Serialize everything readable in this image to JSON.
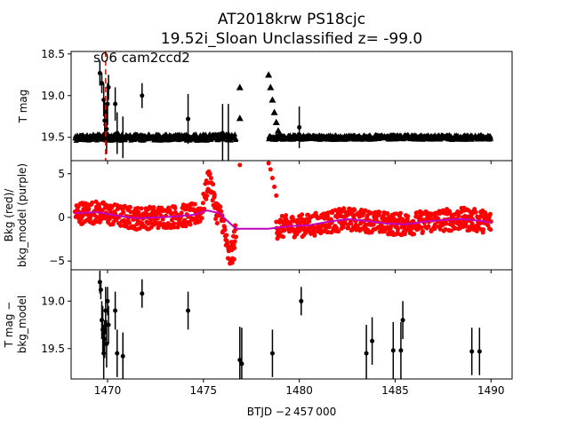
{
  "title_line1": "AT2018krw  PS18cjc",
  "title_line2": "19.52i_Sloan Unclassified z= -99.0",
  "xlabel": "BTJD −2 457 000",
  "chart_data": [
    {
      "type": "scatter",
      "panel": "top",
      "ylabel": "T mag",
      "annotation": "s06 cam2ccd2",
      "xlim": [
        1468.1,
        1491.1
      ],
      "ylim": [
        19.78,
        18.47
      ],
      "y_inverted": true,
      "xticks": [
        1470,
        1475,
        1480,
        1485,
        1490
      ],
      "yticks": [
        18.5,
        19.0,
        19.5
      ],
      "ytick_labels": [
        "18.5",
        "19.0",
        "19.5"
      ],
      "marker_line": {
        "x": 1469.9,
        "color": "#ff0000",
        "style": "dashed"
      },
      "triangle_series": {
        "name": "",
        "color": "#000000",
        "segments": [
          {
            "x_start": 1468.3,
            "x_end": 1476.7,
            "y_base": 19.5,
            "y_amp": 0.04
          },
          {
            "x_start": 1478.4,
            "x_end": 1490.0,
            "y_base": 19.5,
            "y_amp": 0.03
          }
        ],
        "points": [
          {
            "x": 1476.9,
            "y": 18.9
          },
          {
            "x": 1476.9,
            "y": 19.27
          },
          {
            "x": 1478.4,
            "y": 18.75
          },
          {
            "x": 1478.5,
            "y": 18.9
          },
          {
            "x": 1478.6,
            "y": 19.05
          },
          {
            "x": 1478.7,
            "y": 19.2
          },
          {
            "x": 1478.8,
            "y": 19.32
          },
          {
            "x": 1478.9,
            "y": 19.42
          }
        ]
      },
      "detections": [
        {
          "x": 1469.6,
          "y": 18.73,
          "err": 0.15
        },
        {
          "x": 1469.7,
          "y": 18.85,
          "err": 0.12
        },
        {
          "x": 1469.8,
          "y": 19.05,
          "err": 0.2
        },
        {
          "x": 1469.85,
          "y": 19.3,
          "err": 0.25
        },
        {
          "x": 1469.9,
          "y": 19.35,
          "err": 0.2
        },
        {
          "x": 1469.95,
          "y": 19.4,
          "err": 0.3
        },
        {
          "x": 1470.0,
          "y": 19.1,
          "err": 0.25
        },
        {
          "x": 1470.05,
          "y": 18.9,
          "err": 0.15
        },
        {
          "x": 1470.4,
          "y": 19.1,
          "err": 0.2
        },
        {
          "x": 1470.5,
          "y": 19.45,
          "err": 0.25
        },
        {
          "x": 1470.8,
          "y": 19.5,
          "err": 0.25
        },
        {
          "x": 1471.8,
          "y": 19.0,
          "err": 0.15
        },
        {
          "x": 1474.2,
          "y": 19.28,
          "err": 0.3
        },
        {
          "x": 1476.0,
          "y": 19.45,
          "err": 0.35
        },
        {
          "x": 1476.3,
          "y": 19.5,
          "err": 0.4
        },
        {
          "x": 1480.0,
          "y": 19.38,
          "err": 0.25
        }
      ]
    },
    {
      "type": "scatter",
      "panel": "middle",
      "ylabel_line1": "Bkg (red)/",
      "ylabel_line2": "bkg_model (purple)",
      "xlim": [
        1468.1,
        1491.1
      ],
      "ylim": [
        -6.0,
        6.5
      ],
      "yticks": [
        -5,
        0,
        5
      ],
      "ytick_labels": [
        "−5",
        "0",
        "5"
      ],
      "series": [
        {
          "name": "Bkg",
          "color": "#ff0000"
        },
        {
          "name": "bkg_model",
          "color": "#bf00bf"
        }
      ],
      "bkg_model_curve": [
        [
          1468.3,
          0.5
        ],
        [
          1469.5,
          0.6
        ],
        [
          1470.5,
          0.2
        ],
        [
          1471.5,
          -0.1
        ],
        [
          1472.5,
          0.0
        ],
        [
          1473.5,
          0.1
        ],
        [
          1474.5,
          0.3
        ],
        [
          1475.2,
          0.8
        ],
        [
          1475.8,
          0.5
        ],
        [
          1476.3,
          -0.5
        ],
        [
          1476.7,
          -1.3
        ],
        [
          1478.4,
          -1.3
        ],
        [
          1479.5,
          -1.0
        ],
        [
          1480.5,
          -0.9
        ],
        [
          1481.5,
          -0.5
        ],
        [
          1482.5,
          -0.2
        ],
        [
          1483.5,
          -0.4
        ],
        [
          1484.5,
          -0.7
        ],
        [
          1485.5,
          -0.8
        ],
        [
          1486.5,
          -0.5
        ],
        [
          1487.5,
          -0.3
        ],
        [
          1488.5,
          -0.2
        ],
        [
          1489.5,
          -0.4
        ],
        [
          1490.0,
          -0.6
        ]
      ],
      "bkg_outliers": [
        {
          "x": 1476.9,
          "y": 6.0
        },
        {
          "x": 1478.4,
          "y": 6.2
        },
        {
          "x": 1478.5,
          "y": 5.5
        },
        {
          "x": 1478.6,
          "y": 4.5
        },
        {
          "x": 1478.7,
          "y": 3.5
        },
        {
          "x": 1478.8,
          "y": 2.5
        },
        {
          "x": 1475.4,
          "y": 4.5
        },
        {
          "x": 1475.5,
          "y": 3.8
        },
        {
          "x": 1476.5,
          "y": -5.2
        },
        {
          "x": 1476.6,
          "y": -4.8
        }
      ]
    },
    {
      "type": "scatter",
      "panel": "bottom",
      "ylabel_line1": "T mag −",
      "ylabel_line2": "bkg_model",
      "xlim": [
        1468.1,
        1491.1
      ],
      "ylim": [
        19.82,
        18.67
      ],
      "y_inverted": true,
      "yticks": [
        19.0,
        19.5
      ],
      "ytick_labels": [
        "19.0",
        "19.5"
      ],
      "xticks": [
        1470,
        1475,
        1480,
        1485,
        1490
      ],
      "xtick_labels": [
        "1470",
        "1475",
        "1480",
        "1485",
        "1490"
      ],
      "detections": [
        {
          "x": 1469.6,
          "y": 18.8,
          "err": 0.12
        },
        {
          "x": 1469.65,
          "y": 18.88,
          "err": 0.1
        },
        {
          "x": 1469.7,
          "y": 19.2,
          "err": 0.2
        },
        {
          "x": 1469.75,
          "y": 19.3,
          "err": 0.25
        },
        {
          "x": 1469.8,
          "y": 19.55,
          "err": 0.3
        },
        {
          "x": 1469.85,
          "y": 19.4,
          "err": 0.2
        },
        {
          "x": 1469.9,
          "y": 19.1,
          "err": 0.25
        },
        {
          "x": 1469.95,
          "y": 19.45,
          "err": 0.25
        },
        {
          "x": 1470.0,
          "y": 19.0,
          "err": 0.15
        },
        {
          "x": 1470.05,
          "y": 19.25,
          "err": 0.2
        },
        {
          "x": 1470.4,
          "y": 19.1,
          "err": 0.2
        },
        {
          "x": 1470.5,
          "y": 19.55,
          "err": 0.25
        },
        {
          "x": 1470.8,
          "y": 19.58,
          "err": 0.25
        },
        {
          "x": 1471.8,
          "y": 18.92,
          "err": 0.15
        },
        {
          "x": 1474.2,
          "y": 19.1,
          "err": 0.2
        },
        {
          "x": 1476.9,
          "y": 19.62,
          "err": 0.35
        },
        {
          "x": 1477.0,
          "y": 19.66,
          "err": 0.38
        },
        {
          "x": 1478.6,
          "y": 19.55,
          "err": 0.25
        },
        {
          "x": 1480.1,
          "y": 19.0,
          "err": 0.15
        },
        {
          "x": 1483.5,
          "y": 19.55,
          "err": 0.3
        },
        {
          "x": 1483.8,
          "y": 19.42,
          "err": 0.25
        },
        {
          "x": 1484.9,
          "y": 19.52,
          "err": 0.3
        },
        {
          "x": 1485.3,
          "y": 19.52,
          "err": 0.3
        },
        {
          "x": 1485.4,
          "y": 19.2,
          "err": 0.2
        },
        {
          "x": 1489.0,
          "y": 19.53,
          "err": 0.25
        },
        {
          "x": 1489.4,
          "y": 19.53,
          "err": 0.25
        }
      ]
    }
  ]
}
